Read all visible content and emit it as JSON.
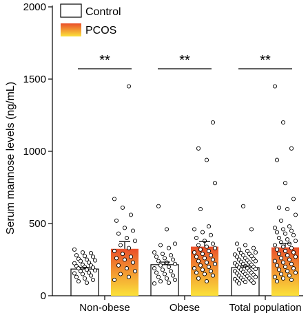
{
  "chart_data": {
    "type": "bar",
    "ylabel": "Serum mannose levels (ng/mL)",
    "ylim": [
      0,
      2000
    ],
    "yticks": [
      0,
      500,
      1000,
      1500,
      2000
    ],
    "ytick_labels": [
      "0",
      "500",
      "1000",
      "1500",
      "2000"
    ],
    "categories": [
      "Non-obese",
      "Obese",
      "Total population"
    ],
    "legend": {
      "position": "top-left"
    },
    "significance": [
      "**",
      "**",
      "**"
    ],
    "colors": {
      "control_fill": "#ffffff",
      "pcos_gradient_top": "#ea4f2a",
      "pcos_gradient_bottom": "#fbe23a",
      "outline": "#000000"
    },
    "series": [
      {
        "name": "Control",
        "values": [
          185,
          215,
          195
        ],
        "errors": [
          12,
          18,
          11
        ],
        "points": [
          [
            320,
            300,
            295,
            280,
            275,
            270,
            255,
            250,
            245,
            240,
            230,
            225,
            215,
            210,
            205,
            200,
            195,
            190,
            180,
            175,
            170,
            160,
            155,
            150,
            140,
            130,
            120,
            110,
            100,
            90
          ],
          [
            620,
            460,
            360,
            350,
            330,
            300,
            290,
            280,
            270,
            260,
            250,
            240,
            230,
            220,
            210,
            200,
            190,
            180,
            170,
            160,
            150,
            140,
            130,
            120,
            110,
            100,
            90,
            85
          ],
          [
            620,
            460,
            360,
            350,
            330,
            320,
            310,
            300,
            295,
            290,
            285,
            280,
            275,
            270,
            260,
            255,
            250,
            245,
            240,
            235,
            230,
            225,
            220,
            215,
            210,
            205,
            200,
            195,
            190,
            185,
            180,
            175,
            170,
            165,
            160,
            155,
            150,
            145,
            140,
            135,
            130,
            125,
            120,
            115,
            110,
            105,
            100,
            95,
            90,
            85
          ]
        ]
      },
      {
        "name": "PCOS",
        "values": [
          325,
          340,
          335
        ],
        "errors": [
          50,
          35,
          28
        ],
        "points": [
          [
            1450,
            670,
            610,
            560,
            520,
            470,
            450,
            430,
            400,
            380,
            350,
            330,
            310,
            290,
            270,
            260,
            250,
            230,
            210,
            190,
            170,
            150,
            130,
            110
          ],
          [
            1200,
            1020,
            940,
            780,
            600,
            480,
            460,
            440,
            420,
            400,
            380,
            360,
            350,
            340,
            330,
            320,
            310,
            300,
            290,
            280,
            270,
            260,
            250,
            240,
            230,
            220,
            210,
            200,
            190,
            180,
            170,
            160,
            150,
            140,
            120,
            100
          ],
          [
            1450,
            1200,
            1020,
            940,
            780,
            670,
            610,
            600,
            560,
            520,
            480,
            470,
            460,
            450,
            440,
            430,
            420,
            400,
            390,
            380,
            370,
            360,
            350,
            340,
            330,
            320,
            310,
            300,
            290,
            280,
            270,
            260,
            250,
            240,
            230,
            220,
            210,
            200,
            190,
            180,
            170,
            160,
            150,
            140,
            130,
            120,
            110,
            100
          ]
        ]
      }
    ]
  }
}
